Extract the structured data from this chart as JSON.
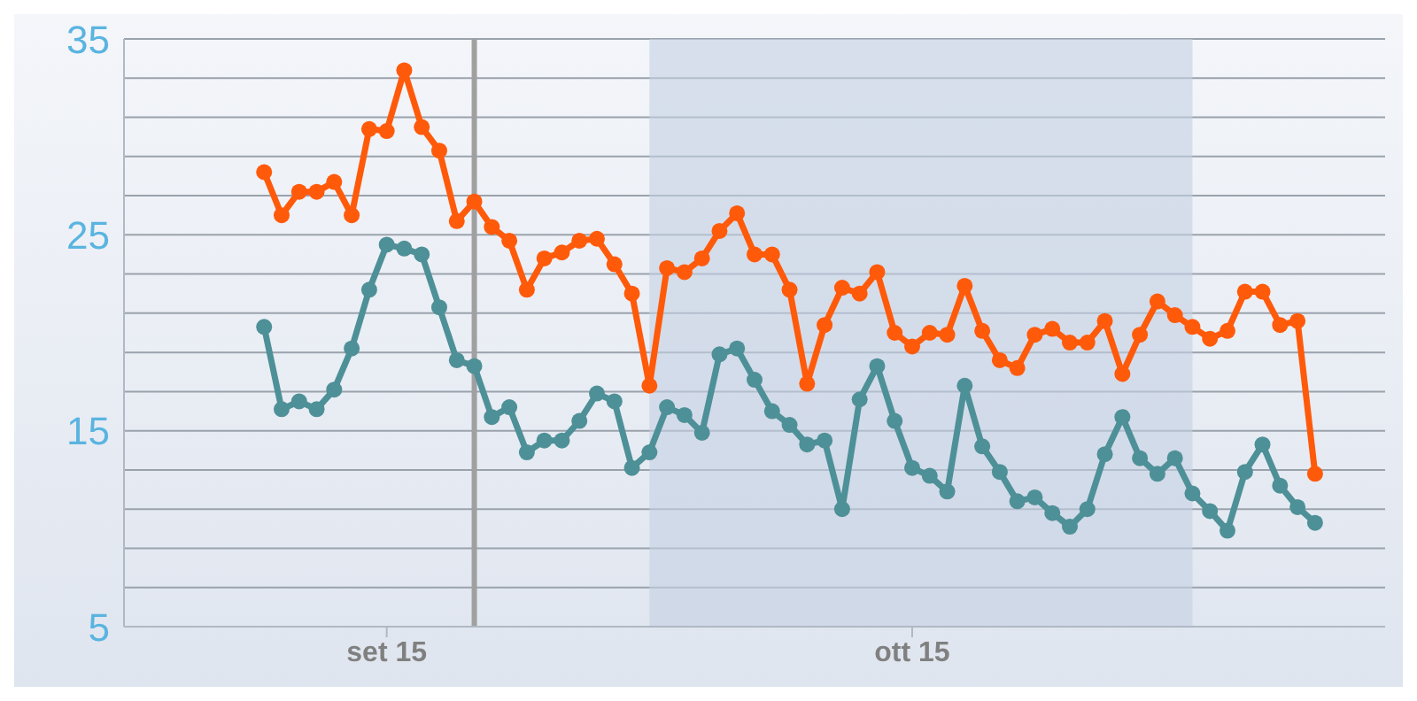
{
  "chart_data": {
    "type": "line",
    "x": [
      "--09-08",
      "--09-09",
      "--09-10",
      "--09-11",
      "--09-12",
      "--09-13",
      "--09-14",
      "--09-15",
      "--09-16",
      "--09-17",
      "--09-18",
      "--09-19",
      "--09-20",
      "--09-21",
      "--09-22",
      "--09-23",
      "--09-24",
      "--09-25",
      "--09-26",
      "--09-27",
      "--09-28",
      "--09-29",
      "--09-30",
      "--10-01",
      "--10-02",
      "--10-03",
      "--10-04",
      "--10-05",
      "--10-06",
      "--10-07",
      "--10-08",
      "--10-09",
      "--10-10",
      "--10-11",
      "--10-12",
      "--10-13",
      "--10-14",
      "--10-15",
      "--10-16",
      "--10-17",
      "--10-18",
      "--10-19",
      "--10-20",
      "--10-21",
      "--10-22",
      "--10-23",
      "--10-24",
      "--10-25",
      "--10-26",
      "--10-27",
      "--10-28",
      "--10-29",
      "--10-30",
      "--10-31",
      "--11-01",
      "--11-02",
      "--11-03",
      "--11-04",
      "--11-05",
      "--11-06",
      "--11-07"
    ],
    "series": [
      {
        "color": "#ff5a0a",
        "values": [
          28.2,
          26.0,
          27.2,
          27.2,
          27.7,
          26.0,
          30.4,
          30.3,
          33.4,
          30.5,
          29.3,
          25.7,
          26.7,
          25.4,
          24.7,
          22.2,
          23.8,
          24.1,
          24.7,
          24.8,
          23.5,
          22.0,
          17.3,
          23.3,
          23.1,
          23.8,
          25.2,
          26.1,
          24.0,
          24.0,
          22.2,
          17.4,
          20.4,
          22.3,
          22.0,
          23.1,
          20.0,
          19.3,
          20.0,
          19.9,
          22.4,
          20.1,
          18.6,
          18.2,
          19.9,
          20.2,
          19.5,
          19.5,
          20.6,
          17.9,
          19.9,
          21.6,
          20.9,
          20.3,
          19.7,
          20.1,
          22.1,
          22.1,
          20.4,
          20.6,
          12.8
        ]
      },
      {
        "color": "#4e9097",
        "values": [
          20.3,
          16.1,
          16.5,
          16.1,
          17.1,
          19.2,
          22.2,
          24.5,
          24.3,
          24.0,
          21.3,
          18.6,
          18.3,
          15.7,
          16.2,
          13.9,
          14.5,
          14.5,
          15.5,
          16.9,
          16.5,
          13.1,
          13.9,
          16.2,
          15.8,
          14.9,
          18.9,
          19.2,
          17.6,
          16.0,
          15.3,
          14.3,
          14.5,
          11.0,
          16.6,
          18.3,
          15.5,
          13.1,
          12.7,
          11.9,
          17.3,
          14.2,
          12.9,
          11.4,
          11.6,
          10.8,
          10.1,
          11.0,
          13.8,
          15.7,
          13.6,
          12.8,
          13.6,
          11.8,
          10.9,
          9.9,
          12.9,
          14.3,
          12.2,
          11.1,
          10.3
        ]
      }
    ],
    "xlim": [
      "--08-31",
      "--11-11"
    ],
    "xticks": [
      {
        "value": "--09-15",
        "label": "set 15"
      },
      {
        "value": "--10-15",
        "label": "ott 15"
      }
    ],
    "ylim": [
      5,
      35
    ],
    "yticks": [
      5,
      {
        "value": 7,
        "label": null
      },
      {
        "value": 9,
        "label": null
      },
      {
        "value": 11,
        "label": null
      },
      {
        "value": 13,
        "label": null
      },
      15,
      {
        "value": 17,
        "label": null
      },
      {
        "value": 19,
        "label": null
      },
      {
        "value": 21,
        "label": null
      },
      {
        "value": 23,
        "label": null
      },
      25,
      {
        "value": 27,
        "label": null
      },
      {
        "value": 29,
        "label": null
      },
      {
        "value": 31,
        "label": null
      },
      {
        "value": 33,
        "label": null
      },
      35
    ],
    "grid": "y",
    "marker": "circle",
    "line_style": "solid",
    "bands": [
      {
        "axis": "x",
        "from": "--09-30",
        "to": "--10-31",
        "color": "#c5d0e2"
      }
    ],
    "ref_lines": [
      {
        "axis": "x",
        "value": "--09-20",
        "color": "#a0a0a0"
      }
    ]
  }
}
